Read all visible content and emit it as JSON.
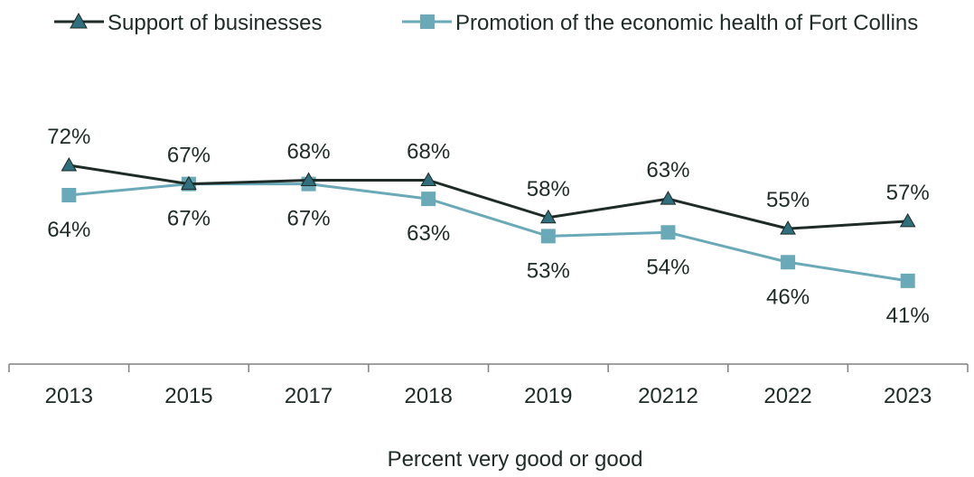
{
  "chart_data": {
    "type": "line",
    "title": "",
    "xlabel": "Percent very good or good",
    "ylabel": "",
    "ylim": [
      0,
      100
    ],
    "grid": false,
    "legend_position": "top",
    "categories": [
      "2013",
      "2015",
      "2017",
      "2018",
      "2019",
      "20212",
      "2022",
      "2023"
    ],
    "series": [
      {
        "name": "Support of businesses",
        "values": [
          72,
          67,
          68,
          68,
          58,
          63,
          55,
          57
        ],
        "labels": [
          "72%",
          "67%",
          "68%",
          "68%",
          "58%",
          "63%",
          "55%",
          "57%"
        ],
        "color": "#1e2b26",
        "marker": "triangle",
        "label_side": "above"
      },
      {
        "name": "Promotion of the economic health of Fort Collins",
        "values": [
          64,
          67,
          67,
          63,
          53,
          54,
          46,
          41
        ],
        "labels": [
          "64%",
          "67%",
          "67%",
          "63%",
          "53%",
          "54%",
          "46%",
          "41%"
        ],
        "color": "#6aa9b8",
        "marker": "square",
        "label_side": "below"
      }
    ]
  }
}
